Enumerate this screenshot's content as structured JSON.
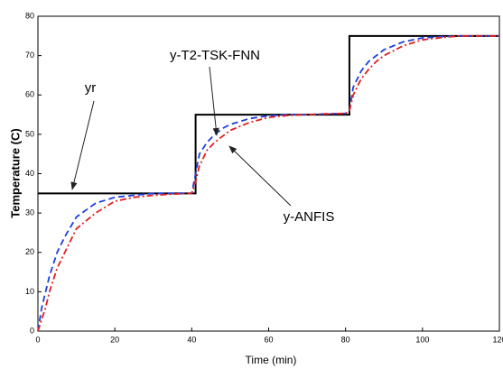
{
  "chart_data": {
    "type": "line",
    "xlabel": "Time (min)",
    "ylabel": "Temperature (C)",
    "x": [
      0,
      1,
      2,
      3,
      5,
      7,
      10,
      15,
      20,
      25,
      30,
      35,
      40,
      41,
      42,
      44,
      46,
      48,
      50,
      55,
      60,
      65,
      70,
      75,
      80,
      81,
      82,
      84,
      86,
      88,
      90,
      95,
      100,
      105,
      110,
      115,
      120
    ],
    "series": [
      {
        "name": "yr",
        "color": "#000000",
        "style": "steps",
        "values": [
          35,
          35,
          35,
          35,
          35,
          35,
          35,
          35,
          35,
          35,
          35,
          35,
          35,
          55,
          55,
          55,
          55,
          55,
          55,
          55,
          55,
          55,
          55,
          55,
          55,
          75,
          75,
          75,
          75,
          75,
          75,
          75,
          75,
          75,
          75,
          75,
          75
        ]
      },
      {
        "name": "y-T2-TSK-FNN",
        "color": "#1f3fe0",
        "style": "dashed",
        "values": [
          0,
          6,
          10,
          14,
          20,
          24,
          29,
          32.5,
          34,
          34.5,
          35,
          35,
          35,
          40,
          45,
          48,
          50,
          51.5,
          52.5,
          54,
          54.7,
          55,
          55,
          55.2,
          55.3,
          56,
          62,
          66,
          68.5,
          70,
          71.5,
          73.5,
          74.5,
          74.8,
          75,
          75,
          75
        ]
      },
      {
        "name": "y-ANFIS",
        "color": "#e02020",
        "style": "dashdot",
        "values": [
          0,
          3,
          6,
          10,
          16,
          20,
          26,
          30,
          33,
          34,
          34.5,
          34.8,
          35,
          38,
          42,
          46,
          48,
          49.5,
          51,
          53,
          54.3,
          54.8,
          55,
          55.2,
          55.3,
          56,
          60,
          64,
          66.5,
          68.5,
          70,
          72.5,
          74,
          74.6,
          75,
          75,
          75
        ]
      }
    ],
    "xlim": [
      0,
      120
    ],
    "xticks": [
      0,
      20,
      40,
      60,
      80,
      100,
      120
    ],
    "ylim": [
      0,
      80
    ],
    "yticks": [
      0,
      10,
      20,
      30,
      40,
      50,
      60,
      70,
      80
    ]
  }
}
